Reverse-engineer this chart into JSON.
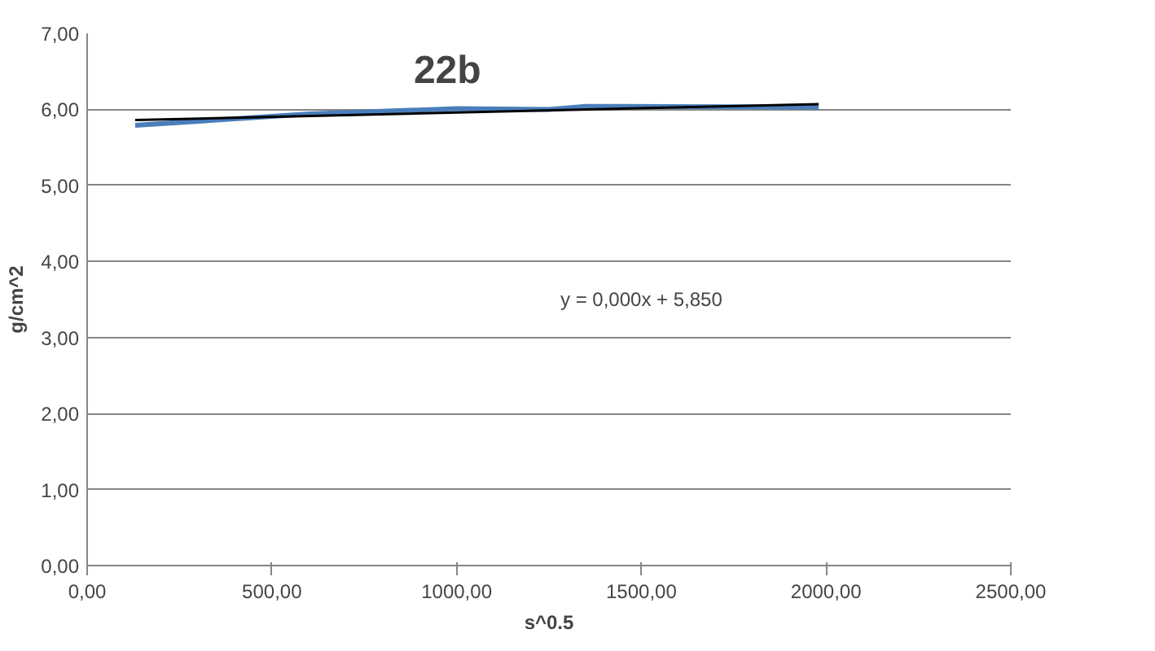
{
  "chart_data": {
    "type": "line",
    "title": "22b",
    "xlabel": "s^0.5",
    "ylabel": "g/cm^2",
    "xlim": [
      0,
      2500
    ],
    "ylim": [
      0,
      7
    ],
    "xticks": [
      {
        "value": 0,
        "label": "0,00"
      },
      {
        "value": 500,
        "label": "500,00"
      },
      {
        "value": 1000,
        "label": "1000,00"
      },
      {
        "value": 1500,
        "label": "1500,00"
      },
      {
        "value": 2000,
        "label": "2000,00"
      },
      {
        "value": 2500,
        "label": "2500,00"
      }
    ],
    "yticks": [
      {
        "value": 0,
        "label": "0,00"
      },
      {
        "value": 1,
        "label": "1,00"
      },
      {
        "value": 2,
        "label": "2,00"
      },
      {
        "value": 3,
        "label": "3,00"
      },
      {
        "value": 4,
        "label": "4,00"
      },
      {
        "value": 5,
        "label": "5,00"
      },
      {
        "value": 6,
        "label": "6,00"
      },
      {
        "value": 7,
        "label": "7,00"
      }
    ],
    "grid": "y",
    "marker": "none",
    "line_style": "solid",
    "annotations": [
      "y = 0,000x + 5,850"
    ],
    "series": [
      {
        "color": "#4a7ebb",
        "x": [
          130,
          600,
          1000,
          1250,
          1350,
          1980
        ],
        "values": [
          5.79,
          5.94,
          6.01,
          6.0,
          6.04,
          6.03
        ]
      },
      {
        "type": "line",
        "color": "#000000",
        "x": [
          130,
          1980
        ],
        "values": [
          5.86,
          6.07
        ]
      }
    ]
  }
}
